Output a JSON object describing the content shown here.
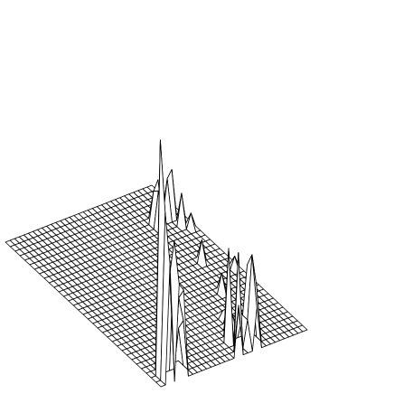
{
  "chart_data": {
    "type": "surface",
    "title": "",
    "xlabel": "",
    "ylabel": "",
    "zlabel": "",
    "grid_cols": 33,
    "grid_rows": 33,
    "z_range": [
      0,
      1
    ],
    "baseline": 0,
    "peaks": [
      {
        "col": 6,
        "row": 30,
        "height": 0.19
      },
      {
        "col": 6,
        "row": 29,
        "height": 0.16
      },
      {
        "col": 6,
        "row": 27,
        "height": 0.17
      },
      {
        "col": 6,
        "row": 26,
        "height": 0.13
      },
      {
        "col": 7,
        "row": 26,
        "height": 0.15
      },
      {
        "col": 8,
        "row": 30,
        "height": 0.13
      },
      {
        "col": 9,
        "row": 31,
        "height": 0.06
      },
      {
        "col": 15,
        "row": 27,
        "height": 0.09
      },
      {
        "col": 18,
        "row": 31,
        "height": 0.05
      },
      {
        "col": 21,
        "row": 25,
        "height": 0.08
      },
      {
        "col": 25,
        "row": 21,
        "height": 0.03
      },
      {
        "col": 26,
        "row": 21,
        "height": 0.06
      },
      {
        "col": 27,
        "row": 20,
        "height": 0.07
      },
      {
        "col": 28,
        "row": 20,
        "height": 0.07
      },
      {
        "col": 30,
        "row": 2,
        "height": 0.96
      },
      {
        "col": 31,
        "row": 2,
        "height": 0.68
      },
      {
        "col": 31,
        "row": 3,
        "height": 0.42
      },
      {
        "col": 32,
        "row": 2,
        "height": 0.49
      },
      {
        "col": 31,
        "row": 4,
        "height": 0.55
      },
      {
        "col": 32,
        "row": 4,
        "height": 0.39
      },
      {
        "col": 31,
        "row": 5,
        "height": 0.31
      },
      {
        "col": 32,
        "row": 5,
        "height": 0.36
      },
      {
        "col": 30,
        "row": 6,
        "height": 0.16
      },
      {
        "col": 31,
        "row": 6,
        "height": 0.21
      },
      {
        "col": 29,
        "row": 18,
        "height": 0.38
      },
      {
        "col": 31,
        "row": 18,
        "height": 0.4
      },
      {
        "col": 32,
        "row": 17,
        "height": 0.21
      },
      {
        "col": 30,
        "row": 19,
        "height": 0.16
      },
      {
        "col": 30,
        "row": 20,
        "height": 0.11
      },
      {
        "col": 31,
        "row": 20,
        "height": 0.11
      },
      {
        "col": 30,
        "row": 21,
        "height": 0.31
      },
      {
        "col": 31,
        "row": 21,
        "height": 0.37
      },
      {
        "col": 30,
        "row": 22,
        "height": 0.28
      },
      {
        "col": 31,
        "row": 22,
        "height": 0.23
      },
      {
        "col": 32,
        "row": 21,
        "height": 0.17
      }
    ],
    "line_color": "#000000",
    "background_color": "#ffffff"
  }
}
